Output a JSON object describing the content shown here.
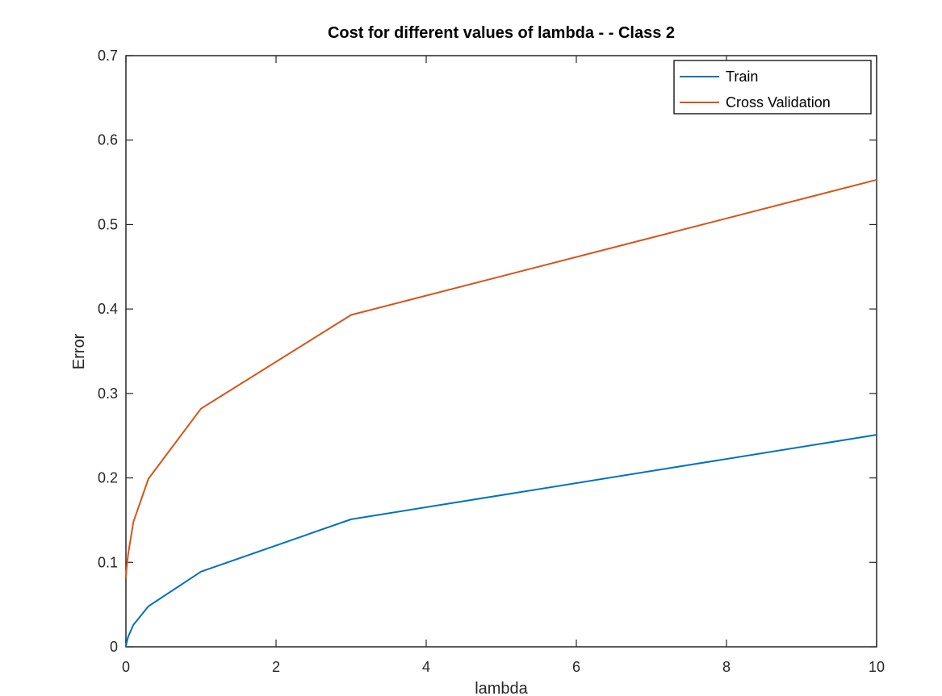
{
  "chart_data": {
    "type": "line",
    "title": "Cost for different values of lambda - - Class 2",
    "xlabel": "lambda",
    "ylabel": "Error",
    "xlim": [
      0,
      10
    ],
    "ylim": [
      0,
      0.7
    ],
    "xticks": [
      0,
      2,
      4,
      6,
      8,
      10
    ],
    "xtick_labels": [
      "0",
      "2",
      "4",
      "6",
      "8",
      "10"
    ],
    "yticks": [
      0,
      0.1,
      0.2,
      0.3,
      0.4,
      0.5,
      0.6,
      0.7
    ],
    "ytick_labels": [
      "0",
      "0.1",
      "0.2",
      "0.3",
      "0.4",
      "0.5",
      "0.6",
      "0.7"
    ],
    "grid": false,
    "legend_position": "top-right",
    "x": [
      0,
      0.001,
      0.003,
      0.01,
      0.03,
      0.1,
      0.3,
      1,
      3,
      10
    ],
    "series": [
      {
        "name": "Train",
        "color": "#0072BD",
        "values": [
          0.0,
          0.001,
          0.002,
          0.005,
          0.012,
          0.026,
          0.048,
          0.089,
          0.151,
          0.251
        ]
      },
      {
        "name": "Cross Validation",
        "color": "#D95319",
        "values": [
          0.081,
          0.083,
          0.086,
          0.094,
          0.11,
          0.148,
          0.199,
          0.282,
          0.393,
          0.553
        ]
      }
    ]
  }
}
